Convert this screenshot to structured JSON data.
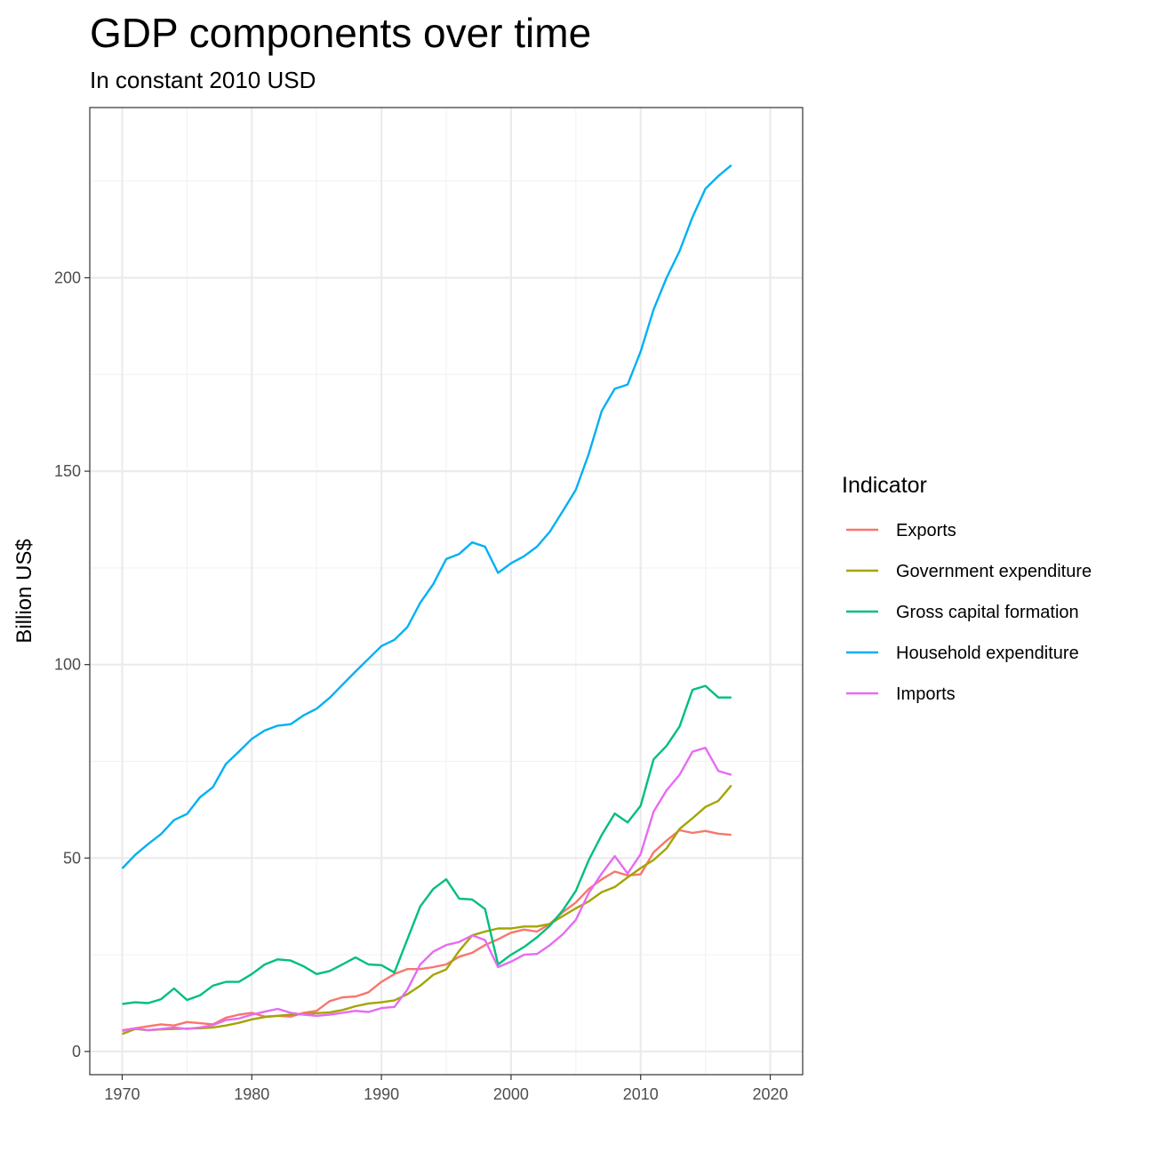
{
  "chart_data": {
    "type": "line",
    "title": "GDP components over time",
    "subtitle": "In constant 2010 USD",
    "xlabel": "",
    "ylabel": "Billion US$",
    "xlim": [
      1967.5,
      2022.5
    ],
    "ylim": [
      -6,
      244
    ],
    "x_ticks": [
      1970,
      1980,
      1990,
      2000,
      2010,
      2020
    ],
    "y_ticks": [
      0,
      50,
      100,
      150,
      200
    ],
    "x_tick_labels": [
      "1970",
      "1980",
      "1990",
      "2000",
      "2010",
      "2020"
    ],
    "y_tick_labels": [
      "0",
      "50",
      "100",
      "150",
      "200"
    ],
    "grid": true,
    "legend_title": "Indicator",
    "legend_position": "right",
    "x": [
      1970,
      1971,
      1972,
      1973,
      1974,
      1975,
      1976,
      1977,
      1978,
      1979,
      1980,
      1981,
      1982,
      1983,
      1984,
      1985,
      1986,
      1987,
      1988,
      1989,
      1990,
      1991,
      1992,
      1993,
      1994,
      1995,
      1996,
      1997,
      1998,
      1999,
      2000,
      2001,
      2002,
      2003,
      2004,
      2005,
      2006,
      2007,
      2008,
      2009,
      2010,
      2011,
      2012,
      2013,
      2014,
      2015,
      2016,
      2017
    ],
    "series": [
      {
        "name": "Exports",
        "color": "#F8766D",
        "values": [
          5.5,
          6.0,
          6.5,
          7.0,
          6.7,
          7.6,
          7.3,
          7.0,
          8.7,
          9.5,
          10.0,
          9.0,
          9.2,
          9.0,
          10.0,
          10.5,
          13.0,
          14.0,
          14.2,
          15.3,
          18.0,
          20.0,
          21.3,
          21.3,
          21.8,
          22.5,
          24.5,
          25.5,
          27.5,
          29.0,
          30.7,
          31.5,
          31.0,
          33.0,
          36.0,
          38.5,
          42.0,
          44.5,
          46.5,
          45.5,
          45.8,
          51.5,
          54.5,
          57.2,
          56.5,
          57.0,
          56.3,
          56.0
        ]
      },
      {
        "name": "Government expenditure",
        "color": "#A3A500",
        "values": [
          4.5,
          5.8,
          5.5,
          5.7,
          5.8,
          5.9,
          6.0,
          6.2,
          6.7,
          7.4,
          8.3,
          8.9,
          9.2,
          9.5,
          9.6,
          9.9,
          10.1,
          10.7,
          11.7,
          12.4,
          12.7,
          13.2,
          14.8,
          17.0,
          19.8,
          21.2,
          26.0,
          30.0,
          31.0,
          31.8,
          31.8,
          32.3,
          32.3,
          33.0,
          35.0,
          37.0,
          38.8,
          41.2,
          42.5,
          45.0,
          47.4,
          49.5,
          52.5,
          57.5,
          60.3,
          63.2,
          64.8,
          68.8
        ]
      },
      {
        "name": "Gross capital formation",
        "color": "#00BF7D",
        "values": [
          12.3,
          12.7,
          12.5,
          13.5,
          16.3,
          13.3,
          14.5,
          17.0,
          18.0,
          18.0,
          20.0,
          22.5,
          23.8,
          23.5,
          22.0,
          20.0,
          20.8,
          22.5,
          24.3,
          22.5,
          22.3,
          20.4,
          29.0,
          37.5,
          42.0,
          44.5,
          39.5,
          39.3,
          36.8,
          22.5,
          25.0,
          27.0,
          29.5,
          32.5,
          36.5,
          41.5,
          49.5,
          56.0,
          61.5,
          59.2,
          63.5,
          75.5,
          79.0,
          84.0,
          93.5,
          94.5,
          91.5,
          91.5
        ]
      },
      {
        "name": "Household expenditure",
        "color": "#00B0F6",
        "values": [
          47.3,
          50.8,
          53.6,
          56.2,
          59.8,
          61.4,
          65.7,
          68.3,
          74.3,
          77.5,
          80.8,
          83.0,
          84.2,
          84.6,
          86.9,
          88.6,
          91.4,
          94.8,
          98.2,
          101.5,
          104.8,
          106.4,
          109.7,
          116.0,
          120.8,
          127.3,
          128.6,
          131.6,
          130.5,
          123.7,
          126.2,
          128.0,
          130.5,
          134.4,
          139.7,
          145.2,
          154.5,
          165.6,
          171.3,
          172.4,
          180.9,
          191.8,
          200.0,
          206.9,
          215.7,
          223.0,
          226.3,
          229.1
        ]
      },
      {
        "name": "Imports",
        "color": "#E76BF3",
        "values": [
          5.3,
          6.0,
          5.5,
          5.8,
          6.2,
          5.8,
          6.2,
          6.8,
          8.1,
          8.5,
          9.5,
          10.3,
          11.0,
          10.0,
          9.5,
          9.2,
          9.5,
          10.0,
          10.5,
          10.2,
          11.2,
          11.5,
          16.0,
          22.5,
          25.8,
          27.5,
          28.3,
          30.0,
          28.8,
          21.8,
          23.2,
          25.0,
          25.2,
          27.5,
          30.3,
          34.0,
          41.0,
          46.0,
          50.5,
          46.0,
          51.0,
          62.0,
          67.5,
          71.5,
          77.5,
          78.5,
          72.5,
          71.5
        ]
      }
    ]
  }
}
